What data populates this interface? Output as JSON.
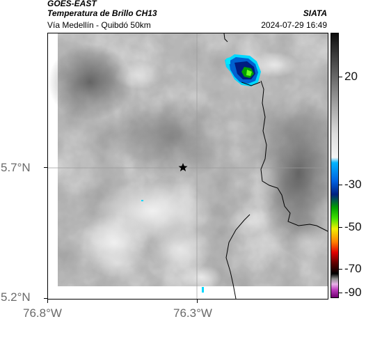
{
  "header": {
    "satellite": "GOES-EAST",
    "product": "Temperatura de Brillo CH13",
    "region": "Vía Medellín - Quibdó 50km",
    "agency": "SIATA",
    "timestamp": "2024-07-29 16:49"
  },
  "axes": {
    "lat_ticks": [
      "5.7°N",
      "5.2°N"
    ],
    "lon_ticks": [
      "76.8°W",
      "76.3°W"
    ]
  },
  "colorbar": {
    "tick_labels": [
      "20",
      "-30",
      "-50",
      "-70",
      "-90"
    ],
    "gradient_colors": [
      "#0d0d0d",
      "#3a3a3a",
      "#707070",
      "#a8a8a8",
      "#dcdcdc",
      "#f4f4f4",
      "#00b4ff",
      "#0060e0",
      "#002080",
      "#00a000",
      "#40e000",
      "#f0f000",
      "#ff8000",
      "#e00000",
      "#600000",
      "#000000",
      "#909090",
      "#e8b0e8",
      "#c040c0",
      "#700070"
    ]
  },
  "map": {
    "marker_icon": "star-icon",
    "background_color": "#808080",
    "storm_colors": [
      "#00e0ff",
      "#0070d0",
      "#001880",
      "#00b000",
      "#60ff00"
    ]
  }
}
